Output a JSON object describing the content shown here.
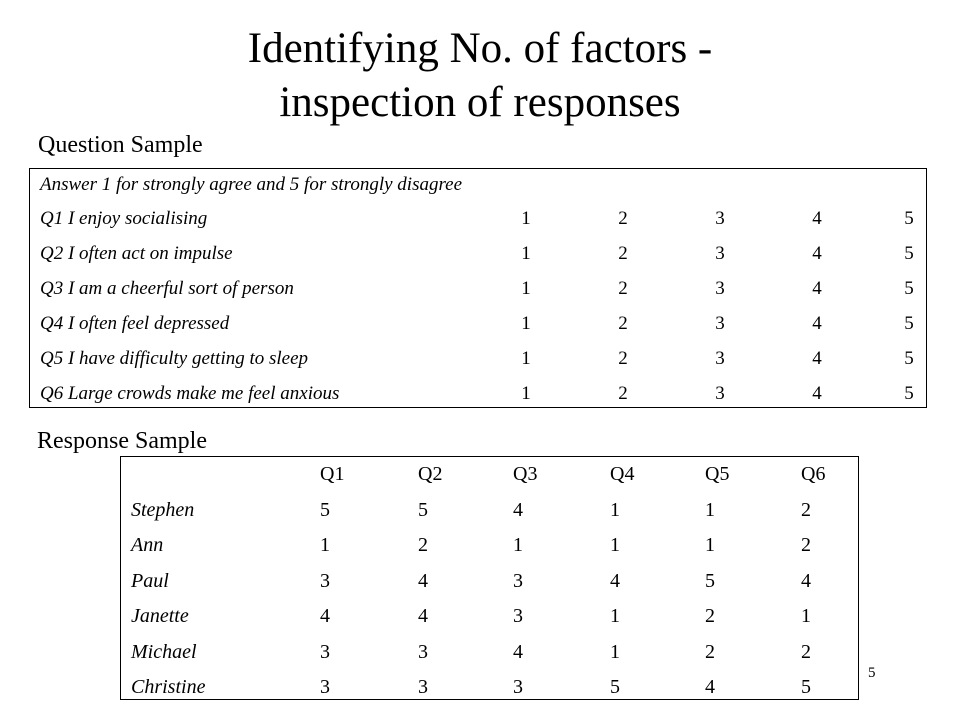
{
  "slide": {
    "title_line1": "Identifying No. of factors -",
    "title_line2": "inspection of responses",
    "page_number": "5"
  },
  "question_sample": {
    "heading": "Question Sample",
    "instruction": "Answer 1 for strongly agree and 5 for strongly disagree",
    "options": [
      "1",
      "2",
      "3",
      "4",
      "5"
    ],
    "questions": [
      "Q1 I enjoy socialising",
      "Q2 I often act on impulse",
      "Q3 I am a cheerful sort of person",
      "Q4 I often feel depressed",
      "Q5 I have difficulty getting to sleep",
      "Q6 Large crowds make me feel anxious"
    ]
  },
  "response_sample": {
    "heading": "Response Sample",
    "columns": [
      "Q1",
      "Q2",
      "Q3",
      "Q4",
      "Q5",
      "Q6"
    ],
    "rows": [
      {
        "name": "Stephen",
        "values": [
          "5",
          "5",
          "4",
          "1",
          "1",
          "2"
        ]
      },
      {
        "name": "Ann",
        "values": [
          "1",
          "2",
          "1",
          "1",
          "1",
          "2"
        ]
      },
      {
        "name": "Paul",
        "values": [
          "3",
          "4",
          "3",
          "4",
          "5",
          "4"
        ]
      },
      {
        "name": "Janette",
        "values": [
          "4",
          "4",
          "3",
          "1",
          "2",
          "1"
        ]
      },
      {
        "name": "Michael",
        "values": [
          "3",
          "3",
          "4",
          "1",
          "2",
          "2"
        ]
      },
      {
        "name": "Christine",
        "values": [
          "3",
          "3",
          "3",
          "5",
          "4",
          "5"
        ]
      }
    ]
  }
}
